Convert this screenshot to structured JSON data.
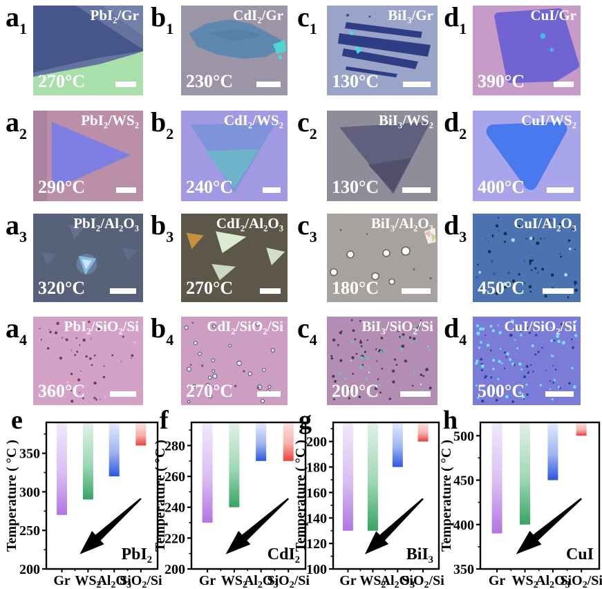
{
  "panels": [
    {
      "letter_runs": [
        {
          "t": "a"
        },
        {
          "t": "1",
          "sub": true
        }
      ],
      "label_runs": [
        {
          "t": "PbI"
        },
        {
          "t": "2",
          "sub": true
        },
        {
          "t": "/Gr"
        }
      ],
      "temp": "270°C",
      "scalebar_w": 30,
      "scene": {
        "kind": "a1",
        "bg": "#64739f",
        "light": "#7382ab",
        "flake": "#46568b",
        "green": "#a9dfab"
      }
    },
    {
      "letter_runs": [
        {
          "t": "b"
        },
        {
          "t": "1",
          "sub": true
        }
      ],
      "label_runs": [
        {
          "t": "CdI"
        },
        {
          "t": "2",
          "sub": true
        },
        {
          "t": "/Gr"
        }
      ],
      "temp": "230°C",
      "scalebar_w": 35,
      "scene": {
        "kind": "b1",
        "bg": "#9c95a8",
        "flake": "#5e88b0",
        "accent": "#4fd6d4"
      }
    },
    {
      "letter_runs": [
        {
          "t": "c"
        },
        {
          "t": "1",
          "sub": true
        }
      ],
      "label_runs": [
        {
          "t": "BiI"
        },
        {
          "t": "3",
          "sub": true
        },
        {
          "t": "/Gr"
        }
      ],
      "temp": "130°C",
      "scalebar_w": 40,
      "scene": {
        "kind": "c1",
        "bg": "#9aa3c8",
        "flake": "#2e3d84",
        "accent": "#45d8e0"
      }
    },
    {
      "letter_runs": [
        {
          "t": "d"
        },
        {
          "t": "1",
          "sub": true
        }
      ],
      "label_runs": [
        {
          "t": "CuI/Gr"
        }
      ],
      "temp": "390°C",
      "scalebar_w": 29,
      "scene": {
        "kind": "d1",
        "bg": "#c79bc8",
        "flake": "#6f64d2",
        "accent": "#3cc8ea"
      }
    },
    {
      "letter_runs": [
        {
          "t": "a"
        },
        {
          "t": "2",
          "sub": true
        }
      ],
      "label_runs": [
        {
          "t": "PbI"
        },
        {
          "t": "2",
          "sub": true
        },
        {
          "t": "/WS"
        },
        {
          "t": "2",
          "sub": true
        }
      ],
      "temp": "290°C",
      "scalebar_w": 29,
      "scene": {
        "kind": "a2",
        "bg": "#bc8fa9",
        "band": "#a87e9b",
        "flake": "#7f7fe3"
      }
    },
    {
      "letter_runs": [
        {
          "t": "b"
        },
        {
          "t": "2",
          "sub": true
        }
      ],
      "label_runs": [
        {
          "t": "CdI"
        },
        {
          "t": "2",
          "sub": true
        },
        {
          "t": "/WS"
        },
        {
          "t": "2",
          "sub": true
        }
      ],
      "temp": "240°C",
      "scalebar_w": 26,
      "scene": {
        "kind": "b2",
        "bg": "#a19ae3",
        "flake": "#7e93da",
        "inner": "#6fb3cb"
      }
    },
    {
      "letter_runs": [
        {
          "t": "c"
        },
        {
          "t": "2",
          "sub": true
        }
      ],
      "label_runs": [
        {
          "t": "BiI"
        },
        {
          "t": "3",
          "sub": true
        },
        {
          "t": "/WS"
        },
        {
          "t": "2",
          "sub": true
        }
      ],
      "temp": "130°C",
      "scalebar_w": 41,
      "scene": {
        "kind": "c2",
        "bg": "#8f8d99",
        "flake": "#5f5d7c",
        "inner": "#514f6a"
      }
    },
    {
      "letter_runs": [
        {
          "t": "d"
        },
        {
          "t": "2",
          "sub": true
        }
      ],
      "label_runs": [
        {
          "t": "CuI/WS"
        },
        {
          "t": "2",
          "sub": true
        }
      ],
      "temp": "400°C",
      "scalebar_w": 39,
      "scene": {
        "kind": "d2",
        "bg": "#a9a5ea",
        "flake": "#4a78ee"
      }
    },
    {
      "letter_runs": [
        {
          "t": "a"
        },
        {
          "t": "3",
          "sub": true
        }
      ],
      "label_runs": [
        {
          "t": "PbI"
        },
        {
          "t": "2",
          "sub": true
        },
        {
          "t": "/Al"
        },
        {
          "t": "2",
          "sub": true
        },
        {
          "t": "O"
        },
        {
          "t": "3",
          "sub": true
        }
      ],
      "temp": "320°C",
      "scalebar_w": 38,
      "scene": {
        "kind": "a3",
        "bg": "#57617a",
        "faint": "#6b7792",
        "bright": "#8cc2ec",
        "core": "#c8e4f8"
      }
    },
    {
      "letter_runs": [
        {
          "t": "b"
        },
        {
          "t": "3",
          "sub": true
        }
      ],
      "label_runs": [
        {
          "t": "CdI"
        },
        {
          "t": "2",
          "sub": true
        },
        {
          "t": "/Al"
        },
        {
          "t": "2",
          "sub": true
        },
        {
          "t": "O"
        },
        {
          "t": "3",
          "sub": true
        }
      ],
      "temp": "270°C",
      "scalebar_w": 30,
      "scene": {
        "kind": "b3",
        "bg": "#5c5748",
        "orange": "#c4923c",
        "pale": "#dcead2"
      }
    },
    {
      "letter_runs": [
        {
          "t": "c"
        },
        {
          "t": "3",
          "sub": true
        }
      ],
      "label_runs": [
        {
          "t": "BiI"
        },
        {
          "t": "3",
          "sub": true
        },
        {
          "t": "/Al"
        },
        {
          "t": "2",
          "sub": true
        },
        {
          "t": "O"
        },
        {
          "t": "3",
          "sub": true
        }
      ],
      "temp": "180°C",
      "scalebar_w": 42,
      "scene": {
        "kind": "c3",
        "bg": "#a7a29f",
        "dot": "#fdfdfb",
        "ring": "#6a645f",
        "crystal": "#f2f0ee"
      }
    },
    {
      "letter_runs": [
        {
          "t": "d"
        },
        {
          "t": "3",
          "sub": true
        }
      ],
      "label_runs": [
        {
          "t": "CuI/Al"
        },
        {
          "t": "2",
          "sub": true
        },
        {
          "t": "O"
        },
        {
          "t": "3",
          "sub": true
        }
      ],
      "temp": "450°C",
      "scalebar_w": 45,
      "scene": {
        "kind": "dots",
        "bg": "#4c73af",
        "seed": 11,
        "layers": [
          {
            "c": "#18304f",
            "n": 42,
            "r0": 1,
            "r1": 2.6
          },
          {
            "c": "#2f5c94",
            "n": 14,
            "r0": 1,
            "r1": 2
          },
          {
            "c": "#a5dcf4",
            "n": 7,
            "r0": 1.5,
            "r1": 2.8
          }
        ]
      }
    },
    {
      "letter_runs": [
        {
          "t": "a"
        },
        {
          "t": "4",
          "sub": true
        }
      ],
      "label_runs": [
        {
          "t": "PbI"
        },
        {
          "t": "2",
          "sub": true
        },
        {
          "t": "/SiO"
        },
        {
          "t": "2",
          "sub": true
        },
        {
          "t": "/Si"
        }
      ],
      "temp": "360°C",
      "scalebar_w": 38,
      "scene": {
        "kind": "dots",
        "bg": "#d3a2c6",
        "seed": 12,
        "layers": [
          {
            "c": "#6a4168",
            "n": 30,
            "r0": 1,
            "r1": 2.3
          },
          {
            "c": "#96638f",
            "n": 12,
            "r0": 0.8,
            "r1": 1.6
          },
          {
            "c": "#e7c6de",
            "n": 4,
            "r0": 1,
            "r1": 1.6
          }
        ]
      }
    },
    {
      "letter_runs": [
        {
          "t": "b"
        },
        {
          "t": "4",
          "sub": true
        }
      ],
      "label_runs": [
        {
          "t": "CdI"
        },
        {
          "t": "2",
          "sub": true
        },
        {
          "t": "/SiO"
        },
        {
          "t": "2",
          "sub": true
        },
        {
          "t": "/Si"
        }
      ],
      "temp": "270°C",
      "scalebar_w": 34,
      "scene": {
        "kind": "dots",
        "bg": "#cb9ec2",
        "seed": 13,
        "layers": [
          {
            "c": "#dcedf5",
            "n": 24,
            "r0": 2,
            "r1": 3.4,
            "s": "#584868"
          },
          {
            "c": "#7a5078",
            "n": 7,
            "r0": 1.2,
            "r1": 2
          }
        ]
      }
    },
    {
      "letter_runs": [
        {
          "t": "c"
        },
        {
          "t": "4",
          "sub": true
        }
      ],
      "label_runs": [
        {
          "t": "BiI"
        },
        {
          "t": "3",
          "sub": true
        },
        {
          "t": "/SiO"
        },
        {
          "t": "2",
          "sub": true
        },
        {
          "t": "/Si"
        }
      ],
      "temp": "200°C",
      "scalebar_w": 44,
      "scene": {
        "kind": "dots",
        "bg": "#b48db2",
        "seed": 14,
        "layers": [
          {
            "c": "#47395c",
            "n": 60,
            "r0": 1,
            "r1": 2.4
          },
          {
            "c": "#5fc9c5",
            "n": 28,
            "r0": 1,
            "r1": 2.2
          },
          {
            "c": "#e8e0ee",
            "n": 6,
            "r0": 0.8,
            "r1": 1.3
          }
        ]
      }
    },
    {
      "letter_runs": [
        {
          "t": "d"
        },
        {
          "t": "4",
          "sub": true
        }
      ],
      "label_runs": [
        {
          "t": "CuI/SiO"
        },
        {
          "t": "2",
          "sub": true
        },
        {
          "t": "/Si"
        }
      ],
      "temp": "500°C",
      "scalebar_w": 41,
      "scene": {
        "kind": "dots",
        "bg": "#7b7bd8",
        "seed": 15,
        "layers": [
          {
            "c": "#2c3c8e",
            "n": 45,
            "r0": 1,
            "r1": 2.2
          },
          {
            "c": "#6fe2f5",
            "n": 55,
            "r0": 1.2,
            "r1": 2.8
          }
        ]
      }
    }
  ],
  "chart_data": [
    {
      "type": "bar",
      "panel_letter": "e",
      "material": "PbI2",
      "material_runs": [
        {
          "t": "PbI"
        },
        {
          "t": "2",
          "sub": true
        }
      ],
      "ylabel": "Temperature ( °C )",
      "unit": "°C",
      "ymin": 200,
      "ymax": 390,
      "yticks": [
        200,
        250,
        300,
        350
      ],
      "minor_step": 25,
      "categories": [
        "Gr",
        "WS2",
        "Al2O3",
        "SiO2/Si"
      ],
      "categories_runs": [
        [
          {
            "t": "Gr"
          }
        ],
        [
          {
            "t": "WS"
          },
          {
            "t": "2",
            "sub": true
          }
        ],
        [
          {
            "t": "Al"
          },
          {
            "t": "2",
            "sub": true
          },
          {
            "t": "O"
          },
          {
            "t": "3",
            "sub": true
          }
        ],
        [
          {
            "t": "SiO"
          },
          {
            "t": "2",
            "sub": true
          },
          {
            "t": "/Si"
          }
        ]
      ],
      "bars_hang_from": 390,
      "values": [
        270,
        290,
        320,
        360
      ],
      "grid": false,
      "annotation": "black arrow pointing to lower-left"
    },
    {
      "type": "bar",
      "panel_letter": "f",
      "material": "CdI2",
      "material_runs": [
        {
          "t": "CdI"
        },
        {
          "t": "2",
          "sub": true
        }
      ],
      "ylabel": "Temperature ( °C )",
      "unit": "°C",
      "ymin": 200,
      "ymax": 295,
      "yticks": [
        200,
        220,
        240,
        260,
        280
      ],
      "minor_step": 10,
      "categories": [
        "Gr",
        "WS2",
        "Al2O3",
        "SiO2/Si"
      ],
      "categories_runs": [
        [
          {
            "t": "Gr"
          }
        ],
        [
          {
            "t": "WS"
          },
          {
            "t": "2",
            "sub": true
          }
        ],
        [
          {
            "t": "Al"
          },
          {
            "t": "2",
            "sub": true
          },
          {
            "t": "O"
          },
          {
            "t": "3",
            "sub": true
          }
        ],
        [
          {
            "t": "SiO"
          },
          {
            "t": "2",
            "sub": true
          },
          {
            "t": "/Si"
          }
        ]
      ],
      "bars_hang_from": 295,
      "values": [
        230,
        240,
        270,
        270
      ],
      "grid": false,
      "annotation": "black arrow pointing to lower-left"
    },
    {
      "type": "bar",
      "panel_letter": "g",
      "material": "BiI3",
      "material_runs": [
        {
          "t": "BiI"
        },
        {
          "t": "3",
          "sub": true
        }
      ],
      "ylabel": "Temperature ( °C )",
      "unit": "°C",
      "ymin": 100,
      "ymax": 215,
      "yticks": [
        100,
        120,
        140,
        160,
        180,
        200
      ],
      "minor_step": 10,
      "categories": [
        "Gr",
        "WS2",
        "Al2O3",
        "SiO2/Si"
      ],
      "categories_runs": [
        [
          {
            "t": "Gr"
          }
        ],
        [
          {
            "t": "WS"
          },
          {
            "t": "2",
            "sub": true
          }
        ],
        [
          {
            "t": "Al"
          },
          {
            "t": "2",
            "sub": true
          },
          {
            "t": "O"
          },
          {
            "t": "3",
            "sub": true
          }
        ],
        [
          {
            "t": "SiO"
          },
          {
            "t": "2",
            "sub": true
          },
          {
            "t": "/Si"
          }
        ]
      ],
      "bars_hang_from": 215,
      "values": [
        130,
        130,
        180,
        200
      ],
      "grid": false,
      "annotation": "black arrow pointing to lower-left"
    },
    {
      "type": "bar",
      "panel_letter": "h",
      "material": "CuI",
      "material_runs": [
        {
          "t": "CuI"
        }
      ],
      "ylabel": "Temperature ( °C )",
      "unit": "°C",
      "ymin": 350,
      "ymax": 515,
      "yticks": [
        350,
        400,
        450,
        500
      ],
      "minor_step": 25,
      "categories": [
        "Gr",
        "WS2",
        "Al2O3",
        "SiO2/Si"
      ],
      "categories_runs": [
        [
          {
            "t": "Gr"
          }
        ],
        [
          {
            "t": "WS"
          },
          {
            "t": "2",
            "sub": true
          }
        ],
        [
          {
            "t": "Al"
          },
          {
            "t": "2",
            "sub": true
          },
          {
            "t": "O"
          },
          {
            "t": "3",
            "sub": true
          }
        ],
        [
          {
            "t": "SiO"
          },
          {
            "t": "2",
            "sub": true
          },
          {
            "t": "/Si"
          }
        ]
      ],
      "bars_hang_from": 515,
      "values": [
        390,
        400,
        450,
        500
      ],
      "grid": false,
      "annotation": "black arrow pointing to lower-left"
    }
  ],
  "style": {
    "bar_gradients": [
      [
        "#f1e9fa",
        "#d9bdf2",
        "#b374e3"
      ],
      [
        "#e0f2e6",
        "#9ed7b4",
        "#36a563"
      ],
      [
        "#e3eafb",
        "#9db4ef",
        "#2b57e0"
      ],
      [
        "#fbe2e1",
        "#f6b0ad",
        "#ec403c"
      ]
    ],
    "axis_color": "#000000",
    "arrow_color": "#000000",
    "overlay_text_color": "#ffffff",
    "scalebar_color": "#ffffff"
  }
}
